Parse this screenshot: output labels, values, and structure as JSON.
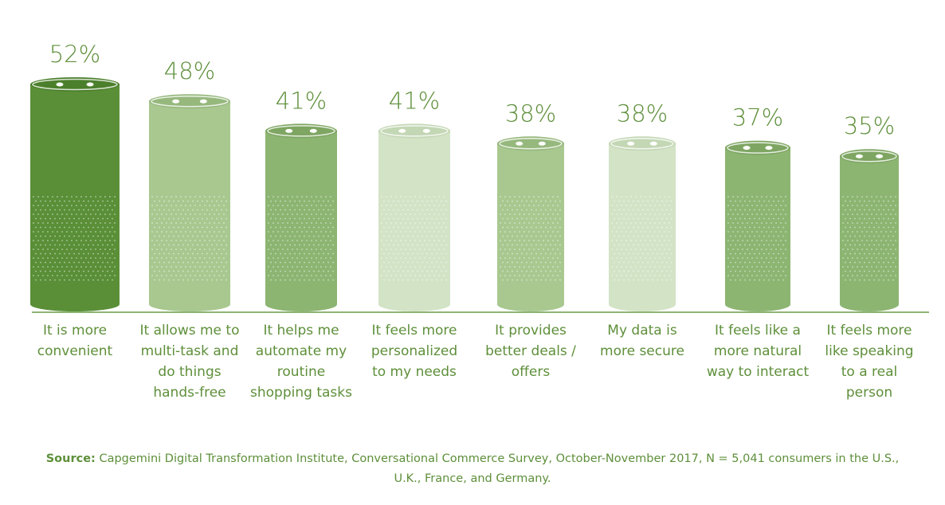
{
  "colors": {
    "text": "#5e8f3a",
    "axis": "#8cb472",
    "dark": "#5a8f38",
    "medium": "#8cb572",
    "light": "#a8c890",
    "pale": "#d3e3c6",
    "lid_dark": "#4b7f2b",
    "lid_medium": "#7ea662",
    "lid_light": "#96b87d",
    "lid_pale": "#c3d7b4"
  },
  "chart_data": {
    "type": "bar",
    "categories": [
      "It is more\nconvenient",
      "It allows me to\nmulti-task and\ndo things\nhands-free",
      "It helps me\nautomate my\nroutine\nshopping tasks",
      "It feels more\npersonalized\nto my needs",
      "It provides\nbetter deals /\noffers",
      "My data is\nmore secure",
      "It feels like a\nmore natural\nway to interact",
      "It feels more\nlike speaking\nto a real\nperson"
    ],
    "values": [
      52,
      48,
      41,
      41,
      38,
      38,
      37,
      35
    ],
    "value_labels": [
      "52%",
      "48%",
      "41%",
      "41%",
      "38%",
      "38%",
      "37%",
      "35%"
    ],
    "bar_shades": [
      "dark",
      "light",
      "medium",
      "pale",
      "light",
      "pale",
      "medium",
      "medium"
    ],
    "title": "",
    "xlabel": "",
    "ylabel": "",
    "ylim": [
      0,
      52
    ],
    "grid": false,
    "legend": "none"
  },
  "source": {
    "label": "Source:",
    "text": " Capgemini Digital Transformation Institute, Conversational Commerce Survey, October-November 2017, N = 5,041 consumers in the U.S., U.K., France, and Germany."
  }
}
